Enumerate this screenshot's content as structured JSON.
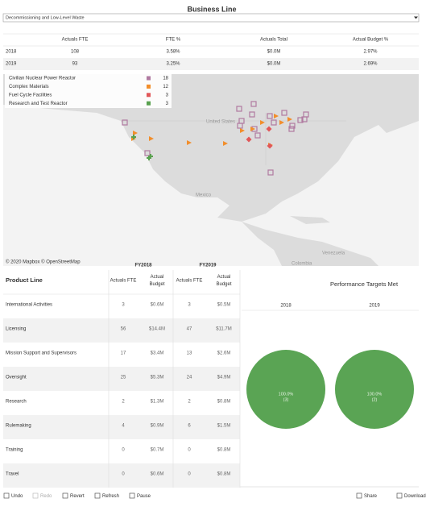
{
  "header": {
    "title": "Business Line",
    "dropdown": "Decommissioning and Low-Level Waste"
  },
  "summary_table": {
    "columns": [
      "Actuals FTE",
      "FTE %",
      "Actuals Total",
      "Actual Budget %"
    ],
    "rows": [
      [
        "2018",
        "108",
        "3.58%",
        "$0.0M",
        "2.97%"
      ],
      [
        "2019",
        "93",
        "3.25%",
        "$0.0M",
        "2.69%"
      ]
    ]
  },
  "map": {
    "legend": [
      {
        "label": "Civilian Nuclear Power Reactor",
        "count": "18",
        "color": "#b07aa1"
      },
      {
        "label": "Complex Materials",
        "count": "12",
        "color": "#f28e2b"
      },
      {
        "label": "Fuel Cycle Facilities",
        "count": "3",
        "color": "#e15759"
      },
      {
        "label": "Research and Test Reactor",
        "count": "3",
        "color": "#59a14f"
      }
    ],
    "places": [
      "United States",
      "Mexico",
      "Venezuela",
      "Colombia"
    ],
    "attribution": "© 2020 Mapbox © OpenStreetMap"
  },
  "product_table": {
    "groups": [
      "FY2018",
      "FY2019"
    ],
    "title": "Product Line",
    "columns": [
      "Actuals FTE",
      "Actual Budget",
      "Actuals FTE",
      "Actual Budget"
    ],
    "rows": [
      [
        "International Activities",
        "3",
        "$0.6M",
        "3",
        "$0.5M"
      ],
      [
        "Licensing",
        "56",
        "$14.4M",
        "47",
        "$11.7M"
      ],
      [
        "Mission Support and Supervisors",
        "17",
        "$3.4M",
        "13",
        "$2.6M"
      ],
      [
        "Oversight",
        "25",
        "$5.3M",
        "24",
        "$4.9M"
      ],
      [
        "Research",
        "2",
        "$1.3M",
        "2",
        "$0.8M"
      ],
      [
        "Rulemaking",
        "4",
        "$0.9M",
        "6",
        "$1.5M"
      ],
      [
        "Training",
        "0",
        "$0.7M",
        "0",
        "$0.8M"
      ],
      [
        "Travel",
        "0",
        "$0.6M",
        "0",
        "$0.8M"
      ]
    ]
  },
  "performance": {
    "title": "Performance Targets Met",
    "pies": [
      {
        "year": "2018",
        "percent": "100.0%",
        "count": "(3)"
      },
      {
        "year": "2019",
        "percent": "100.0%",
        "count": "(2)"
      }
    ]
  },
  "toolbar": [
    "Undo",
    "Redo",
    "Revert",
    "Refresh",
    "Pause",
    "Share",
    "Download"
  ]
}
